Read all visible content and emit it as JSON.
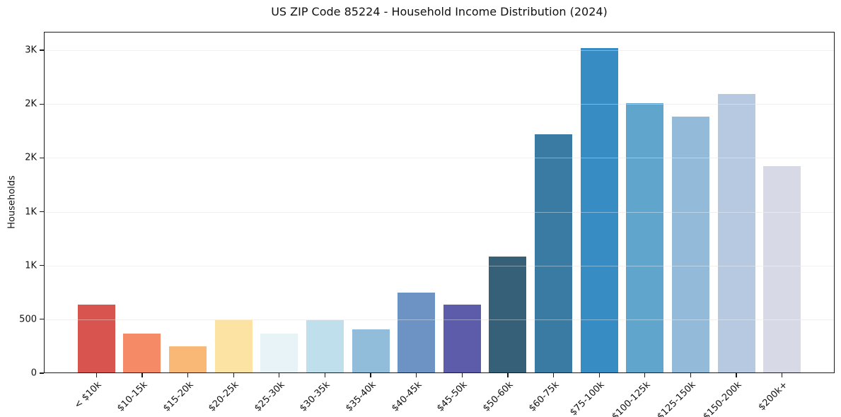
{
  "chart_data": {
    "type": "bar",
    "title": "US ZIP Code 85224 - Household Income Distribution (2024)",
    "xlabel": "",
    "ylabel": "Households",
    "categories": [
      "< $10k",
      "$10-15k",
      "$15-20k",
      "$20-25k",
      "$25-30k",
      "$30-35k",
      "$35-40k",
      "$40-45k",
      "$45-50k",
      "$50-60k",
      "$60-75k",
      "$75-100k",
      "$100-125k",
      "$125-150k",
      "$150-200k",
      "$200k+"
    ],
    "values": [
      640,
      365,
      250,
      500,
      365,
      495,
      405,
      750,
      635,
      1085,
      2220,
      3020,
      2505,
      2380,
      2595,
      1925
    ],
    "bar_colors": [
      "#d8544e",
      "#f58a67",
      "#fab876",
      "#fde3a3",
      "#e8f3f8",
      "#c0dfed",
      "#92bdda",
      "#6c93c4",
      "#5c5caa",
      "#356077",
      "#3a7ba4",
      "#368cc3",
      "#5fa5cc",
      "#93bad8",
      "#b7c8e1",
      "#d7d9e7"
    ],
    "ylim": [
      0,
      3171
    ],
    "y_ticks": [
      {
        "value": 0,
        "label": "0"
      },
      {
        "value": 500,
        "label": "500"
      },
      {
        "value": 1000,
        "label": "1K"
      },
      {
        "value": 1500,
        "label": "1K"
      },
      {
        "value": 2000,
        "label": "2K"
      },
      {
        "value": 2500,
        "label": "2K"
      },
      {
        "value": 3000,
        "label": "3K"
      }
    ],
    "grid": "horizontal",
    "legend": "none",
    "background_color": "#ffffff",
    "spine_color": "#1a1a1a",
    "grid_color": "#e7e7e7"
  }
}
